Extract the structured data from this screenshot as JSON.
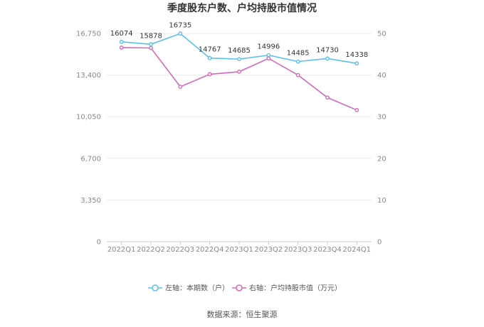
{
  "chart_data": {
    "type": "line",
    "title": "季度股东户数、户均持股市值情况",
    "categories": [
      "2022Q1",
      "2022Q2",
      "2022Q3",
      "2022Q4",
      "2023Q1",
      "2023Q2",
      "2023Q3",
      "2023Q4",
      "2024Q1"
    ],
    "y_left": {
      "range": [
        0,
        16750
      ],
      "ticks": [
        "0",
        "3,350",
        "6,700",
        "10,050",
        "13,400",
        "16,750"
      ]
    },
    "y_right": {
      "range": [
        0,
        50
      ],
      "ticks": [
        "0",
        "10",
        "20",
        "30",
        "40",
        "50"
      ]
    },
    "series": [
      {
        "name": "左轴：本期数（户）",
        "axis": "left",
        "color": "#5bc0eb",
        "values": [
          16074,
          15878,
          16735,
          14767,
          14685,
          14996,
          14485,
          14730,
          14338
        ],
        "labels": [
          "16074",
          "15878",
          "16735",
          "14767",
          "14685",
          "14996",
          "14485",
          "14730",
          "14338"
        ]
      },
      {
        "name": "右轴：户均持股市值（万元）",
        "axis": "right",
        "color": "#d36bb9",
        "values": [
          46.6,
          46.5,
          37.2,
          40.2,
          40.8,
          44.0,
          40.0,
          34.6,
          31.6
        ]
      }
    ],
    "grid": true,
    "legend_position": "bottom"
  },
  "footer": {
    "source": "数据来源：恒生聚源"
  }
}
